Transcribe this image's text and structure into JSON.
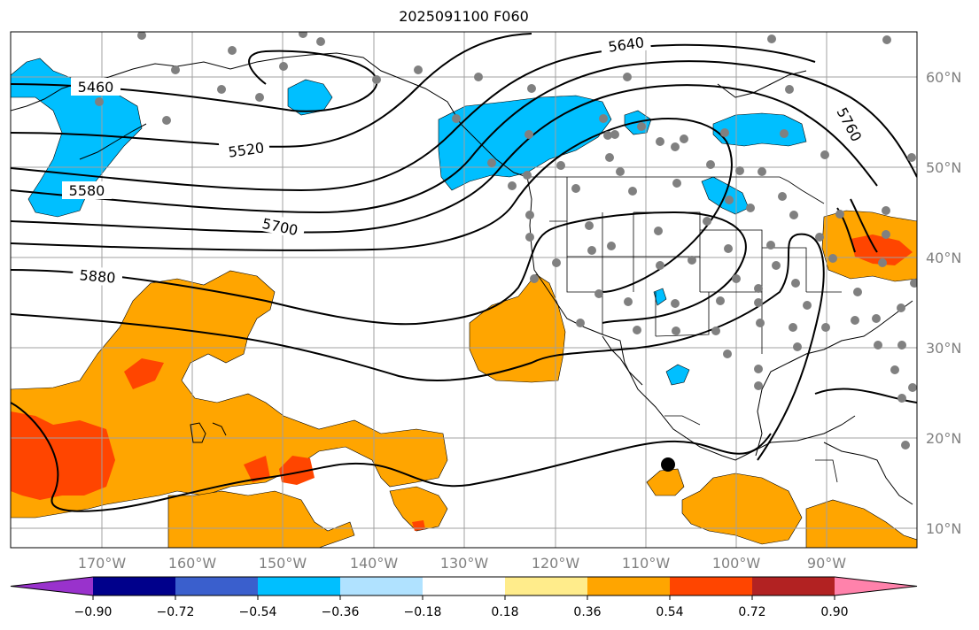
{
  "title": "2025091100 F060",
  "colors": {
    "ocean": "#ffffff",
    "positive_moderate": "#ffa500",
    "positive_strong": "#ff4500",
    "negative_moderate": "#00bfff",
    "negative_strong": "#3a5fcd",
    "height_contour": "#000000",
    "station_dot": "#808080",
    "grid": "#a0a0a0",
    "lat_label": "#808080"
  },
  "longitude_labels": [
    "170°W",
    "160°W",
    "150°W",
    "140°W",
    "130°W",
    "120°W",
    "110°W",
    "100°W",
    "90°W"
  ],
  "latitude_labels": [
    "60°N",
    "50°N",
    "40°N",
    "30°N",
    "20°N",
    "10°N"
  ],
  "contour_labels": [
    "5460",
    "5520",
    "5580",
    "5640",
    "5700",
    "5760",
    "5880"
  ],
  "colorbar": {
    "colors": [
      "#9932cc",
      "#00008b",
      "#3a5fcd",
      "#00bfff",
      "#b0e2ff",
      "#ffffff",
      "#ffec8b",
      "#ffa500",
      "#ff4500",
      "#b22222",
      "#ff82ab"
    ],
    "tick_labels": [
      "−0.90",
      "−0.72",
      "−0.54",
      "−0.36",
      "−0.18",
      "0.18",
      "0.36",
      "0.54",
      "0.72",
      "0.90"
    ]
  },
  "markers": {
    "tropical_center": "black-dot-icon"
  }
}
